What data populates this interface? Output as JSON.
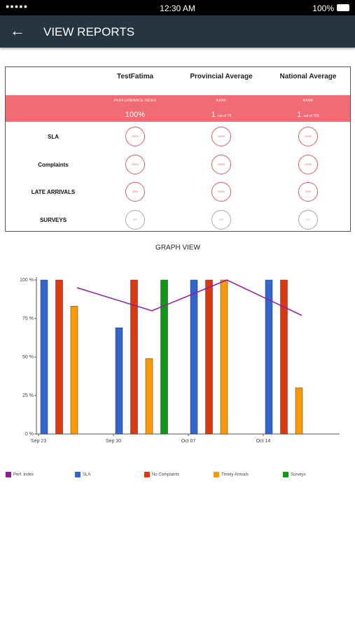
{
  "status_bar": {
    "time": "12:30 AM",
    "battery": "100%"
  },
  "header": {
    "title": "VIEW REPORTS"
  },
  "table": {
    "columns": [
      "TestFatima",
      "Provincial Average",
      "National Average"
    ],
    "summary": [
      {
        "label": "PERFORMANCE INDEX",
        "value": "100%"
      },
      {
        "label": "RANK",
        "value": "1",
        "note": "out of 79"
      },
      {
        "label": "RANK",
        "value": "1",
        "note": "out of 759"
      }
    ],
    "rows": [
      {
        "label": "SLA",
        "cells": [
          "100%",
          "100%",
          "100%"
        ]
      },
      {
        "label": "Complaints",
        "cells": [
          "100%",
          "100%",
          "100%"
        ]
      },
      {
        "label": "LATE ARRIVALS",
        "cells": [
          "33%",
          "100%",
          "20%"
        ]
      },
      {
        "label": "SURVEYS",
        "cells": [
          "0%",
          "0%",
          "0%"
        ]
      }
    ]
  },
  "chart_data": {
    "type": "bar",
    "title": "GRAPH VIEW",
    "categories": [
      "Sep 23",
      "Sep 30",
      "Oct 07",
      "Oct 14"
    ],
    "ylim": [
      0,
      100
    ],
    "yticks": [
      {
        "value": 0,
        "label": "0 %"
      },
      {
        "value": 25,
        "label": "25 %"
      },
      {
        "value": 50,
        "label": "50 %"
      },
      {
        "value": 75,
        "label": "75 %"
      },
      {
        "value": 100,
        "label": "100 %"
      }
    ],
    "series": [
      {
        "name": "Perf. Index",
        "type": "line",
        "color": "#8e1b9e",
        "values": [
          95,
          80,
          100,
          77
        ]
      },
      {
        "name": "SLA",
        "type": "bar",
        "color": "#3366cc",
        "values": [
          100,
          69,
          100,
          100
        ]
      },
      {
        "name": "No Complaints",
        "type": "bar",
        "color": "#dc3912",
        "values": [
          100,
          100,
          100,
          100
        ]
      },
      {
        "name": "Timely Arrivals",
        "type": "bar",
        "color": "#ff9900",
        "values": [
          83,
          49,
          100,
          30
        ]
      },
      {
        "name": "Surveys",
        "type": "bar",
        "color": "#109618",
        "values": [
          null,
          100,
          null,
          null
        ]
      }
    ]
  }
}
